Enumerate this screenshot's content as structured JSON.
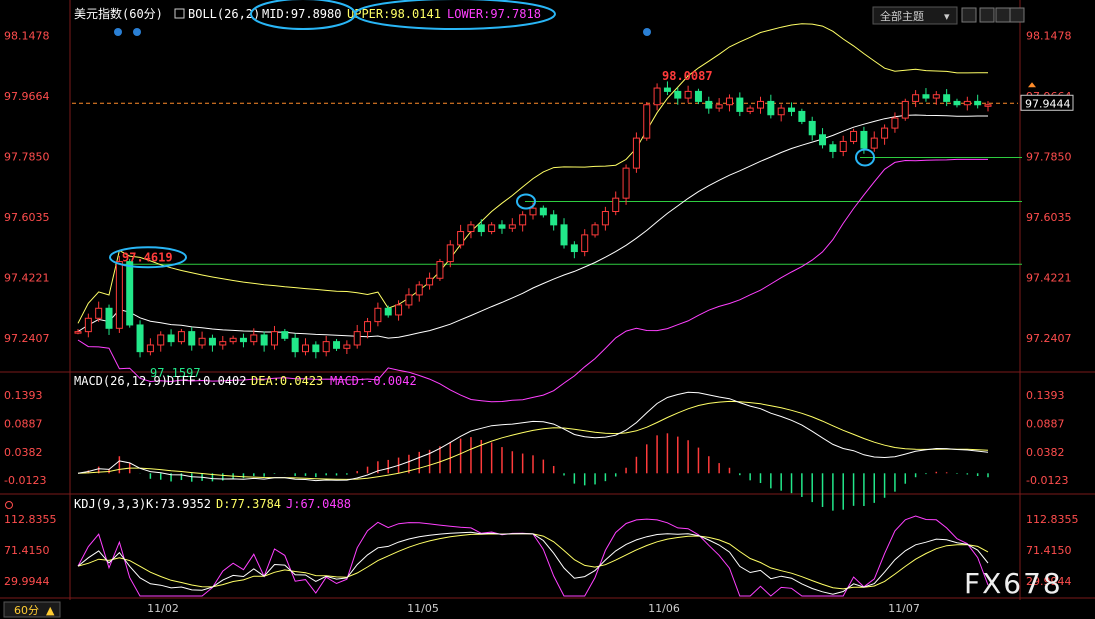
{
  "header": {
    "symbol": "美元指数(60分)",
    "indicator": "BOLL(26,2)",
    "mid_label": "MID:97.8980",
    "upper_label": "UPPER:98.0141",
    "lower_label": "LOWER:97.7818",
    "theme_select": "全部主题",
    "period_button": "60分"
  },
  "watermark": "FX678",
  "colors": {
    "up": "#ff3b3b",
    "down": "#22e88a",
    "mid": "#ffffff",
    "upper": "#ffff66",
    "lower": "#ff40ff",
    "green_line": "#2ecc40",
    "axis_text": "#ff4d4d",
    "highlight": "#29b6f6"
  },
  "chart_data": [
    {
      "type": "candlestick",
      "title": "美元指数 BOLL(26,2)",
      "y_ticks": [
        "98.1478",
        "97.9664",
        "97.7850",
        "97.6035",
        "97.4221",
        "97.2407"
      ],
      "y_range": [
        97.16,
        98.17
      ],
      "x_ticks": [
        "11/02",
        "11/05",
        "11/06",
        "11/07"
      ],
      "annotations": [
        "97.4619",
        "97.1597",
        "98.0087"
      ],
      "current_price": "97.9444",
      "close": [
        97.26,
        97.3,
        97.33,
        97.27,
        97.47,
        97.28,
        97.2,
        97.22,
        97.25,
        97.23,
        97.26,
        97.22,
        97.24,
        97.22,
        97.23,
        97.24,
        97.23,
        97.25,
        97.22,
        97.26,
        97.24,
        97.2,
        97.22,
        97.2,
        97.23,
        97.21,
        97.22,
        97.26,
        97.29,
        97.33,
        97.31,
        97.34,
        97.37,
        97.4,
        97.42,
        97.47,
        97.52,
        97.56,
        97.58,
        97.56,
        97.58,
        97.57,
        97.58,
        97.61,
        97.63,
        97.61,
        97.58,
        97.52,
        97.5,
        97.55,
        97.58,
        97.62,
        97.66,
        97.75,
        97.84,
        97.94,
        97.99,
        97.98,
        97.96,
        97.98,
        97.95,
        97.93,
        97.94,
        97.96,
        97.92,
        97.93,
        97.95,
        97.91,
        97.93,
        97.92,
        97.89,
        97.85,
        97.82,
        97.8,
        97.83,
        97.86,
        97.81,
        97.84,
        97.87,
        97.9,
        97.95,
        97.97,
        97.96,
        97.97,
        97.95,
        97.94,
        97.95,
        97.94,
        97.94
      ]
    },
    {
      "type": "line",
      "title": "MACD(26,12,9)",
      "labels": [
        "DIFF:0.0402",
        "DEA:0.0423",
        "MACD:-0.0042"
      ],
      "y_ticks": [
        "0.1393",
        "0.0887",
        "0.0382",
        "-0.0123"
      ],
      "y_range": [
        -0.035,
        0.155
      ]
    },
    {
      "type": "line",
      "title": "KDJ(9,3,3)",
      "labels": [
        "K:73.9352",
        "D:77.3784",
        "J:67.0488"
      ],
      "y_ticks": [
        "112.8355",
        "71.4150",
        "29.9944"
      ],
      "y_range": [
        10,
        125
      ]
    }
  ]
}
